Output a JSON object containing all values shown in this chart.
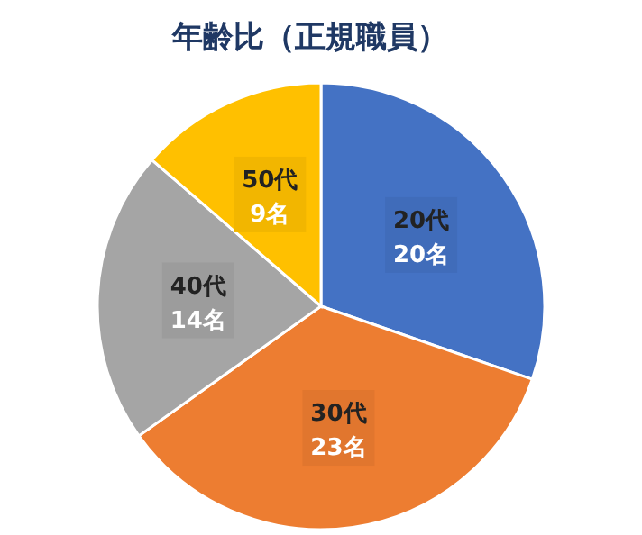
{
  "chart_data": {
    "type": "pie",
    "title": "年齢比（正規職員）",
    "categories": [
      "20代",
      "30代",
      "40代",
      "50代"
    ],
    "values": [
      20,
      23,
      14,
      9
    ],
    "value_labels": [
      "20名",
      "23名",
      "14名",
      "9名"
    ],
    "colors": [
      "#4472c4",
      "#ed7d31",
      "#a5a5a5",
      "#ffc000"
    ]
  }
}
